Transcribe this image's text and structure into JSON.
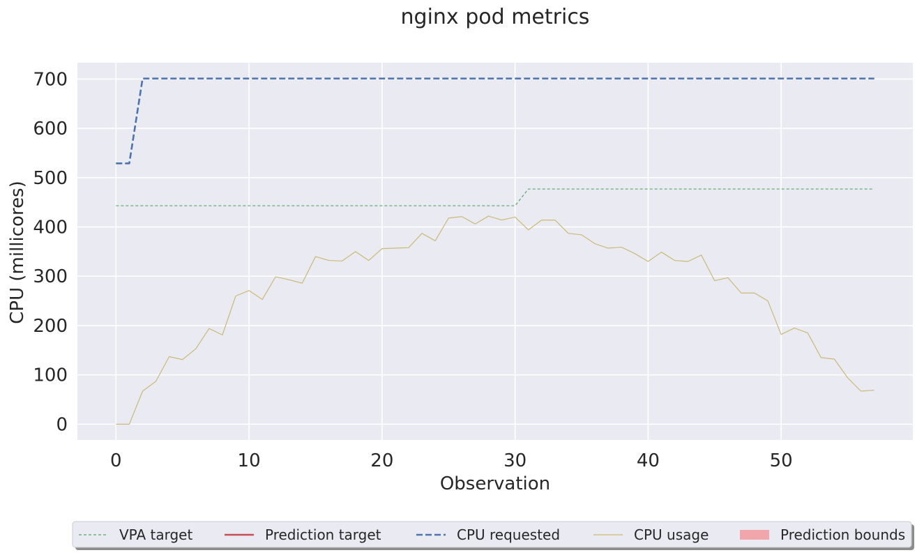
{
  "chart_data": {
    "type": "line",
    "title": "nginx pod metrics",
    "xlabel": "Observation",
    "ylabel": "CPU (millicores)",
    "xlim": [
      -2.9,
      59.9
    ],
    "ylim": [
      -32,
      733
    ],
    "xticks": [
      0,
      10,
      20,
      30,
      40,
      50
    ],
    "yticks": [
      0,
      100,
      200,
      300,
      400,
      500,
      600,
      700
    ],
    "grid": true,
    "legend_position": "bottom",
    "legend": [
      "VPA target",
      "Prediction target",
      "CPU requested",
      "CPU usage",
      "Prediction bounds"
    ],
    "series": [
      {
        "name": "VPA target",
        "style": "dashed-thin",
        "color": "#55a868",
        "x": [
          0,
          30,
          31,
          57
        ],
        "values": [
          443,
          443,
          477,
          477
        ]
      },
      {
        "name": "Prediction target",
        "style": "solid",
        "color": "#c44e52",
        "x": [],
        "values": []
      },
      {
        "name": "CPU requested",
        "style": "dashed-thick",
        "color": "#4c72b0",
        "x": [
          0,
          1,
          2,
          57
        ],
        "values": [
          529,
          529,
          701,
          701
        ]
      },
      {
        "name": "CPU usage",
        "style": "solid-thin",
        "color": "#ccb974",
        "x": [
          0,
          1,
          2,
          3,
          4,
          5,
          6,
          7,
          8,
          9,
          10,
          11,
          12,
          13,
          14,
          15,
          16,
          17,
          18,
          19,
          20,
          21,
          22,
          23,
          24,
          25,
          26,
          27,
          28,
          29,
          30,
          31,
          32,
          33,
          34,
          35,
          36,
          37,
          38,
          39,
          40,
          41,
          42,
          43,
          44,
          45,
          46,
          47,
          48,
          49,
          50,
          51,
          52,
          53,
          54,
          55,
          56,
          57
        ],
        "values": [
          0,
          0,
          67,
          87,
          137,
          131,
          153,
          194,
          181,
          260,
          271,
          253,
          299,
          293,
          286,
          340,
          332,
          331,
          350,
          332,
          356,
          357,
          358,
          387,
          372,
          418,
          421,
          406,
          422,
          414,
          420,
          394,
          414,
          414,
          387,
          384,
          366,
          357,
          359,
          346,
          330,
          349,
          332,
          330,
          343,
          291,
          297,
          266,
          266,
          250,
          182,
          195,
          185,
          135,
          132,
          94,
          67,
          69
        ]
      },
      {
        "name": "Prediction bounds",
        "style": "filled-area",
        "color": "#f0a6aa",
        "x": [],
        "lower": [],
        "upper": []
      }
    ]
  }
}
